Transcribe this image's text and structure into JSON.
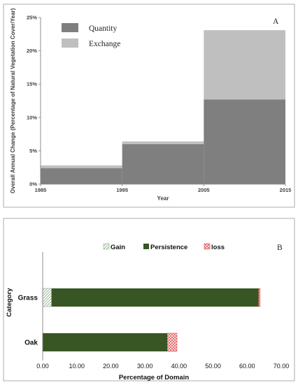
{
  "colors": {
    "quantity": "#7f7f7f",
    "exchange": "#bfbfbf",
    "persistence": "#375623",
    "gain_hatch": "#8fb08a",
    "loss_hatch": "#e05050"
  },
  "chart_data": [
    {
      "type": "area",
      "panel_label": "A",
      "title": "",
      "xlabel": "Year",
      "ylabel": "Overall Annual Change (Percentage of Natural Vegetation Cover/Year)",
      "x_ticks": [
        "1985",
        "1995",
        "2005",
        "2015"
      ],
      "y_ticks": [
        "0%",
        "5%",
        "10%",
        "15%",
        "20%",
        "25%"
      ],
      "xlim": [
        1985,
        2015
      ],
      "ylim": [
        0,
        25
      ],
      "legend_position": "top-left",
      "intervals": [
        {
          "start": 1985,
          "end": 1995,
          "quantity": 2.4,
          "exchange": 0.4
        },
        {
          "start": 1995,
          "end": 2005,
          "quantity": 6.0,
          "exchange": 0.4
        },
        {
          "start": 2005,
          "end": 2015,
          "quantity": 12.7,
          "exchange": 10.4
        }
      ],
      "series": [
        {
          "name": "Quantity",
          "color": "#7f7f7f"
        },
        {
          "name": "Exchange",
          "color": "#bfbfbf"
        }
      ]
    },
    {
      "type": "bar",
      "orientation": "horizontal",
      "stacked": true,
      "panel_label": "B",
      "title": "",
      "xlabel": "Percentage of Domain",
      "ylabel": "Category",
      "categories": [
        "Grass",
        "Oak"
      ],
      "x_ticks": [
        "0.00",
        "10.00",
        "20.00",
        "30.00",
        "40.00",
        "50.00",
        "60.00",
        "70.00"
      ],
      "xlim": [
        0,
        70
      ],
      "legend_position": "top",
      "series": [
        {
          "name": "Gain",
          "values": [
            2.6,
            0.0
          ]
        },
        {
          "name": "Persistence",
          "values": [
            60.8,
            36.6
          ]
        },
        {
          "name": "loss",
          "values": [
            0.4,
            2.8
          ]
        }
      ]
    }
  ]
}
